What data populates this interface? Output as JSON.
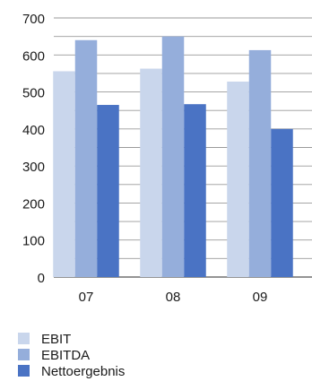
{
  "chart_data": {
    "type": "bar",
    "categories": [
      "07",
      "08",
      "09"
    ],
    "series": [
      {
        "name": "EBIT",
        "values": [
          556,
          563,
          528
        ],
        "color": "#c9d6ec"
      },
      {
        "name": "EBITDA",
        "values": [
          640,
          650,
          613
        ],
        "color": "#95aedb"
      },
      {
        "name": "Nettoergebnis",
        "values": [
          465,
          467,
          400
        ],
        "color": "#4a73c4"
      }
    ],
    "title": "",
    "xlabel": "",
    "ylabel": "",
    "ylim": [
      0,
      700
    ],
    "yticks": [
      0,
      100,
      200,
      300,
      400,
      500,
      600,
      700
    ],
    "grid": "horizontal, including minor lines at 50 intervals",
    "legend_position": "bottom-left"
  }
}
